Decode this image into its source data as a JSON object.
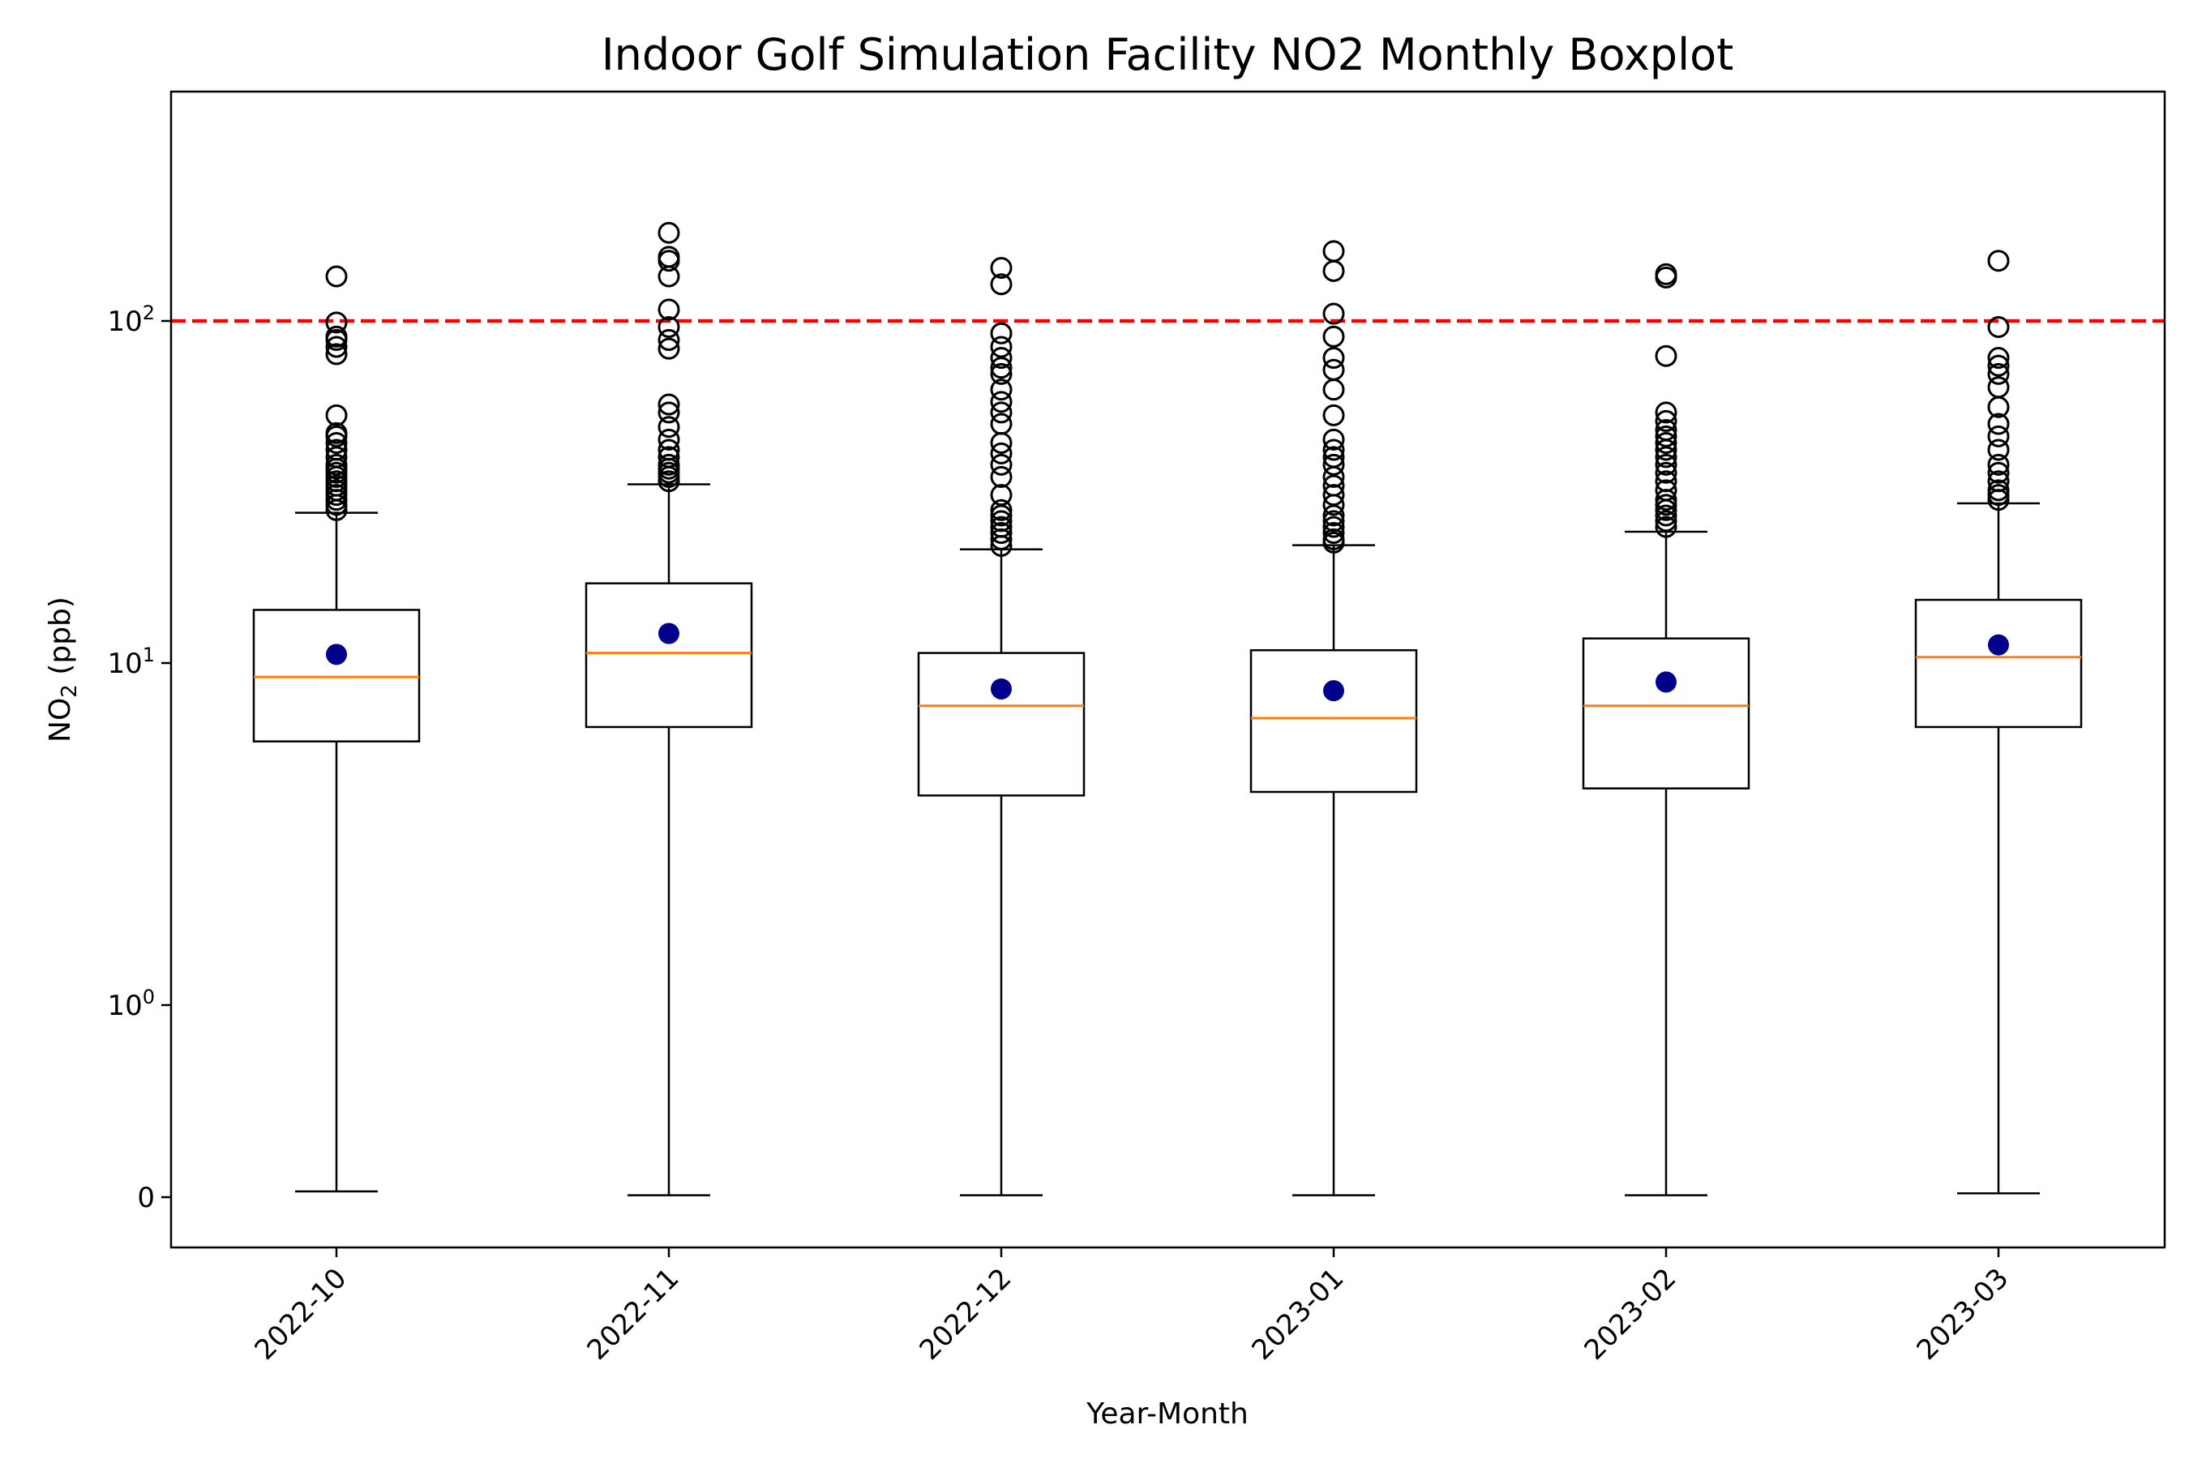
{
  "chart_data": {
    "type": "boxplot",
    "title": "Indoor Golf Simulation Facility NO2 Monthly Boxplot",
    "xlabel": "Year-Month",
    "ylabel": "NO2 (ppb)",
    "yscale": "symlog",
    "ylim": [
      -0.5,
      250
    ],
    "y_ticks": [
      {
        "value": 0,
        "label": "0"
      },
      {
        "value": 1,
        "label": "10^0"
      },
      {
        "value": 10,
        "label": "10^1"
      },
      {
        "value": 100,
        "label": "10^2"
      }
    ],
    "threshold": {
      "value": 100,
      "color": "#ff0000",
      "style": "dashed"
    },
    "colors": {
      "median": "#ff7f0e",
      "mean": "#00008b",
      "box": "#000000",
      "flier": "#000000"
    },
    "categories": [
      "2022-10",
      "2022-11",
      "2022-12",
      "2023-01",
      "2023-02",
      "2023-03"
    ],
    "boxes": [
      {
        "whisker_low": 0.03,
        "q1": 5.9,
        "median": 9.1,
        "q3": 14.3,
        "whisker_high": 27.5,
        "mean": 10.6,
        "fliers": [
          28,
          29,
          30,
          31,
          32,
          33,
          34,
          35,
          36,
          37,
          38,
          40,
          42,
          44,
          46,
          47,
          53,
          80,
          84,
          88,
          90,
          99,
          135
        ]
      },
      {
        "whisker_low": 0.01,
        "q1": 6.5,
        "median": 10.7,
        "q3": 17.1,
        "whisker_high": 33.3,
        "mean": 12.2,
        "fliers": [
          34,
          35,
          36,
          37,
          38,
          40,
          42,
          45,
          49,
          54,
          57,
          83,
          88,
          96,
          108,
          135,
          150,
          154,
          181
        ]
      },
      {
        "whisker_low": 0.01,
        "q1": 4.1,
        "median": 7.5,
        "q3": 10.7,
        "whisker_high": 21.5,
        "mean": 8.4,
        "fliers": [
          22,
          23,
          24,
          25,
          26,
          27,
          28,
          31,
          35,
          38,
          41,
          44,
          50,
          54,
          58,
          63,
          70,
          73,
          78,
          84,
          92,
          128,
          143
        ]
      },
      {
        "whisker_low": 0.01,
        "q1": 4.2,
        "median": 6.9,
        "q3": 10.9,
        "whisker_high": 22.1,
        "mean": 8.3,
        "fliers": [
          22.5,
          23,
          24,
          25,
          26,
          27,
          29,
          31,
          33,
          35,
          38,
          40,
          42,
          45,
          53,
          63,
          72,
          78,
          90,
          105,
          140,
          160
        ]
      },
      {
        "whisker_low": 0.01,
        "q1": 4.3,
        "median": 7.5,
        "q3": 11.8,
        "whisker_high": 24.2,
        "mean": 8.8,
        "fliers": [
          25,
          26,
          27,
          28,
          29,
          30,
          32,
          34,
          36,
          38,
          40,
          42,
          44,
          46,
          48,
          51,
          54,
          79,
          134,
          137
        ]
      },
      {
        "whisker_low": 0.02,
        "q1": 6.5,
        "median": 10.4,
        "q3": 15.3,
        "whisker_high": 29.3,
        "mean": 11.3,
        "fliers": [
          30,
          31,
          32,
          34,
          36,
          38,
          42,
          46,
          50,
          56,
          64,
          70,
          74,
          78,
          96,
          150
        ]
      }
    ]
  }
}
